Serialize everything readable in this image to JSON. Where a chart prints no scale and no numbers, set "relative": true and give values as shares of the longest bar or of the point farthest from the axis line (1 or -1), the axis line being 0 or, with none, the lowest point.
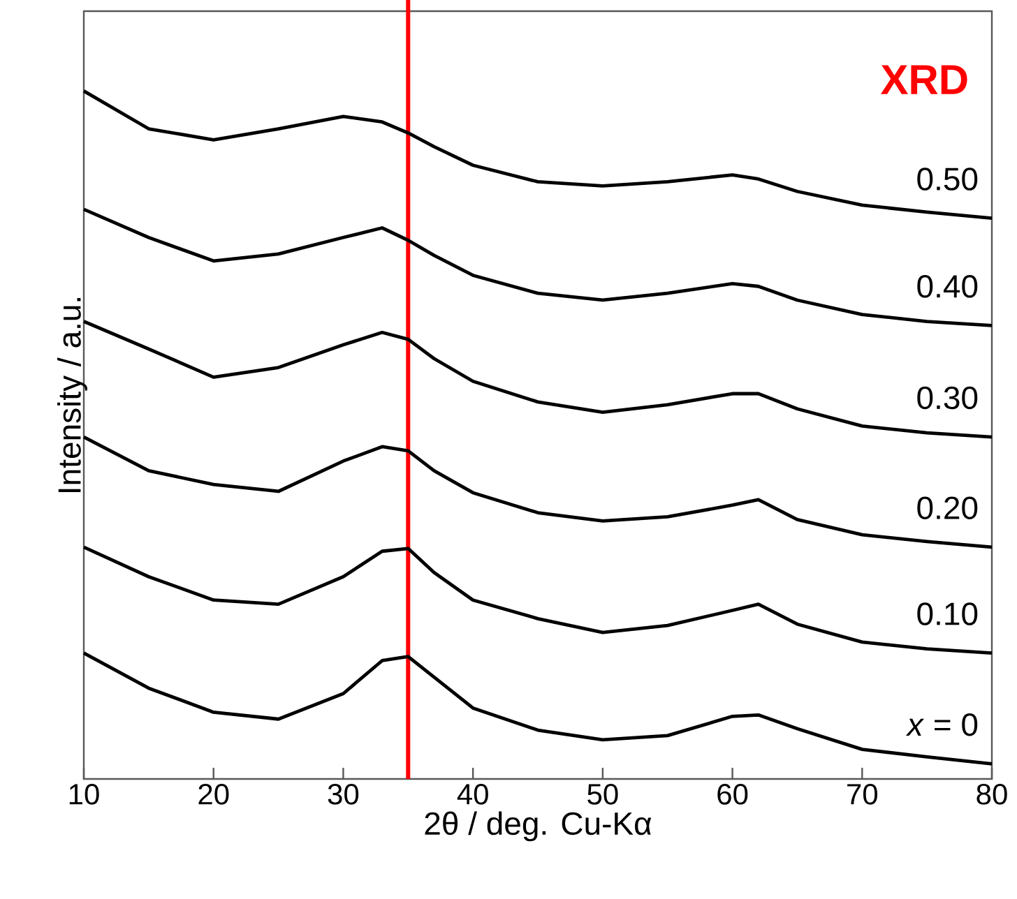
{
  "chart_data": {
    "type": "line",
    "title": "XRD",
    "xlabel": "2θ / deg. Cu-Kα",
    "ylabel": "Intensity / a.u.",
    "relative": true,
    "xlim": [
      10,
      80
    ],
    "xticks": [
      10,
      20,
      30,
      40,
      50,
      60,
      70,
      80
    ],
    "tick_labels": "x",
    "grid": false,
    "legend": false,
    "marker": "none",
    "line_style": "solid",
    "x": [
      10,
      15,
      20,
      25,
      30,
      33,
      35,
      37,
      40,
      45,
      50,
      55,
      60,
      62,
      65,
      70,
      75,
      80
    ],
    "series": [
      {
        "name": "0.50",
        "color": "#000000",
        "values": [
          1.0,
          0.945,
          0.929,
          0.945,
          0.963,
          0.955,
          0.939,
          0.919,
          0.892,
          0.868,
          0.862,
          0.868,
          0.878,
          0.872,
          0.854,
          0.834,
          0.824,
          0.815
        ]
      },
      {
        "name": "0.40",
        "color": "#000000",
        "values": [
          0.828,
          0.787,
          0.753,
          0.763,
          0.787,
          0.801,
          0.783,
          0.761,
          0.732,
          0.706,
          0.696,
          0.706,
          0.72,
          0.716,
          0.696,
          0.675,
          0.665,
          0.659
        ]
      },
      {
        "name": "0.30",
        "color": "#000000",
        "values": [
          0.665,
          0.625,
          0.584,
          0.598,
          0.631,
          0.649,
          0.639,
          0.611,
          0.578,
          0.548,
          0.533,
          0.544,
          0.56,
          0.56,
          0.538,
          0.513,
          0.503,
          0.497
        ]
      },
      {
        "name": "0.20",
        "color": "#000000",
        "values": [
          0.497,
          0.448,
          0.428,
          0.418,
          0.462,
          0.483,
          0.477,
          0.448,
          0.416,
          0.387,
          0.375,
          0.381,
          0.398,
          0.406,
          0.377,
          0.355,
          0.345,
          0.337
        ]
      },
      {
        "name": "0.10",
        "color": "#000000",
        "values": [
          0.337,
          0.294,
          0.26,
          0.254,
          0.294,
          0.331,
          0.335,
          0.3,
          0.26,
          0.233,
          0.213,
          0.223,
          0.245,
          0.254,
          0.225,
          0.199,
          0.189,
          0.183
        ]
      },
      {
        "name": "*x* = 0",
        "color": "#000000",
        "values": [
          0.183,
          0.132,
          0.097,
          0.087,
          0.124,
          0.172,
          0.178,
          0.148,
          0.103,
          0.071,
          0.057,
          0.063,
          0.091,
          0.093,
          0.073,
          0.043,
          0.032,
          0.022
        ]
      }
    ],
    "ref_lines": [
      {
        "axis": "x",
        "value": 35,
        "color": "#ff0000"
      }
    ]
  }
}
